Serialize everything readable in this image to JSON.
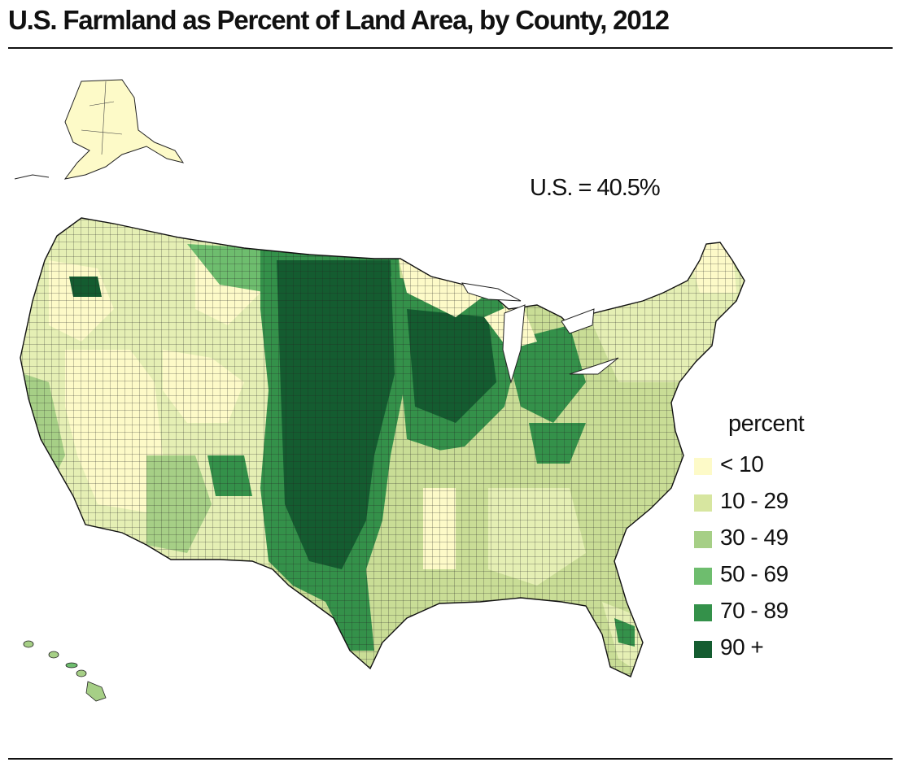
{
  "title": "U.S. Farmland as Percent of Land Area, by County, 2012",
  "us_total": "U.S. = 40.5%",
  "legend": {
    "title": "percent",
    "items": [
      {
        "label": "< 10",
        "color": "#fdfac8"
      },
      {
        "label": "10 - 29",
        "color": "#d7e6a0"
      },
      {
        "label": "30 - 49",
        "color": "#a6cf86"
      },
      {
        "label": "50 - 69",
        "color": "#6ebd6e"
      },
      {
        "label": "70 - 89",
        "color": "#34914a"
      },
      {
        "label": "90 +",
        "color": "#145c30"
      }
    ]
  },
  "colors": {
    "county_border": "#1a1a1a",
    "background": "#ffffff"
  }
}
